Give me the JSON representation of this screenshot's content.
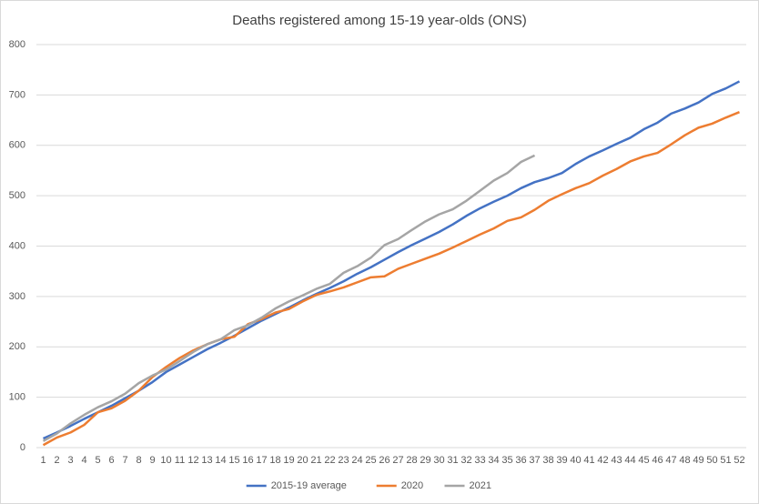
{
  "chart_data": {
    "type": "line",
    "title": "Deaths registered among 15-19 year-olds (ONS)",
    "categories": [
      1,
      2,
      3,
      4,
      5,
      6,
      7,
      8,
      9,
      10,
      11,
      12,
      13,
      14,
      15,
      16,
      17,
      18,
      19,
      20,
      21,
      22,
      23,
      24,
      25,
      26,
      27,
      28,
      29,
      30,
      31,
      32,
      33,
      34,
      35,
      36,
      37,
      38,
      39,
      40,
      41,
      42,
      43,
      44,
      45,
      46,
      47,
      48,
      49,
      50,
      51,
      52
    ],
    "series": [
      {
        "name": "2015-19 average",
        "color": "#4472c4",
        "values": [
          18,
          30,
          43,
          57,
          70,
          83,
          98,
          113,
          130,
          150,
          165,
          180,
          195,
          208,
          222,
          237,
          252,
          265,
          278,
          292,
          305,
          317,
          330,
          345,
          358,
          373,
          388,
          402,
          415,
          428,
          443,
          460,
          475,
          488,
          500,
          515,
          527,
          535,
          545,
          563,
          578,
          590,
          603,
          615,
          632,
          645,
          663,
          673,
          685,
          702,
          713,
          727
        ]
      },
      {
        "name": "2020",
        "color": "#ed7d31",
        "values": [
          5,
          20,
          30,
          45,
          70,
          78,
          93,
          113,
          140,
          160,
          178,
          193,
          205,
          215,
          220,
          245,
          255,
          268,
          275,
          290,
          303,
          310,
          318,
          328,
          338,
          340,
          355,
          365,
          375,
          385,
          397,
          410,
          423,
          435,
          450,
          457,
          472,
          490,
          503,
          515,
          525,
          540,
          553,
          568,
          578,
          585,
          602,
          620,
          635,
          643,
          655,
          666
        ]
      },
      {
        "name": "2021",
        "color": "#a5a5a5",
        "values": [
          13,
          28,
          48,
          65,
          80,
          92,
          107,
          128,
          143,
          155,
          172,
          190,
          205,
          215,
          233,
          243,
          258,
          276,
          290,
          302,
          315,
          325,
          347,
          360,
          377,
          402,
          414,
          432,
          449,
          463,
          473,
          490,
          510,
          530,
          545,
          567,
          580,
          null,
          null,
          null,
          null,
          null,
          null,
          null,
          null,
          null,
          null,
          null,
          null,
          null,
          null,
          null
        ]
      }
    ],
    "ylim": [
      0,
      800
    ],
    "yticks": [
      0,
      100,
      200,
      300,
      400,
      500,
      600,
      700,
      800
    ],
    "grid": true,
    "legend": "bottom"
  }
}
